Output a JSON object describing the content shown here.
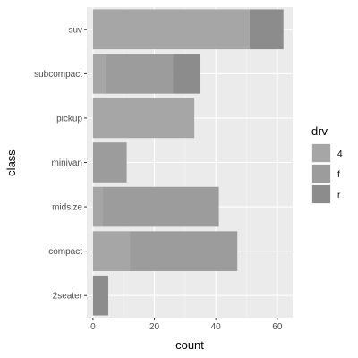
{
  "chart_data": {
    "type": "bar",
    "orientation": "horizontal",
    "stacked": true,
    "xlabel": "count",
    "ylabel": "class",
    "xlim": [
      -2,
      65
    ],
    "x_ticks": [
      0,
      20,
      40,
      60
    ],
    "grid": true,
    "legend_position": "right",
    "legend_title": "drv",
    "categories": [
      "2seater",
      "compact",
      "midsize",
      "minivan",
      "pickup",
      "subcompact",
      "suv"
    ],
    "series": [
      {
        "name": "4",
        "color": "#a6a6a6",
        "values": [
          0,
          12,
          3,
          0,
          33,
          4,
          51
        ]
      },
      {
        "name": "f",
        "color": "#9c9c9c",
        "values": [
          0,
          35,
          38,
          11,
          0,
          22,
          0
        ]
      },
      {
        "name": "r",
        "color": "#8c8c8c",
        "values": [
          5,
          0,
          0,
          0,
          0,
          9,
          11
        ]
      }
    ]
  }
}
